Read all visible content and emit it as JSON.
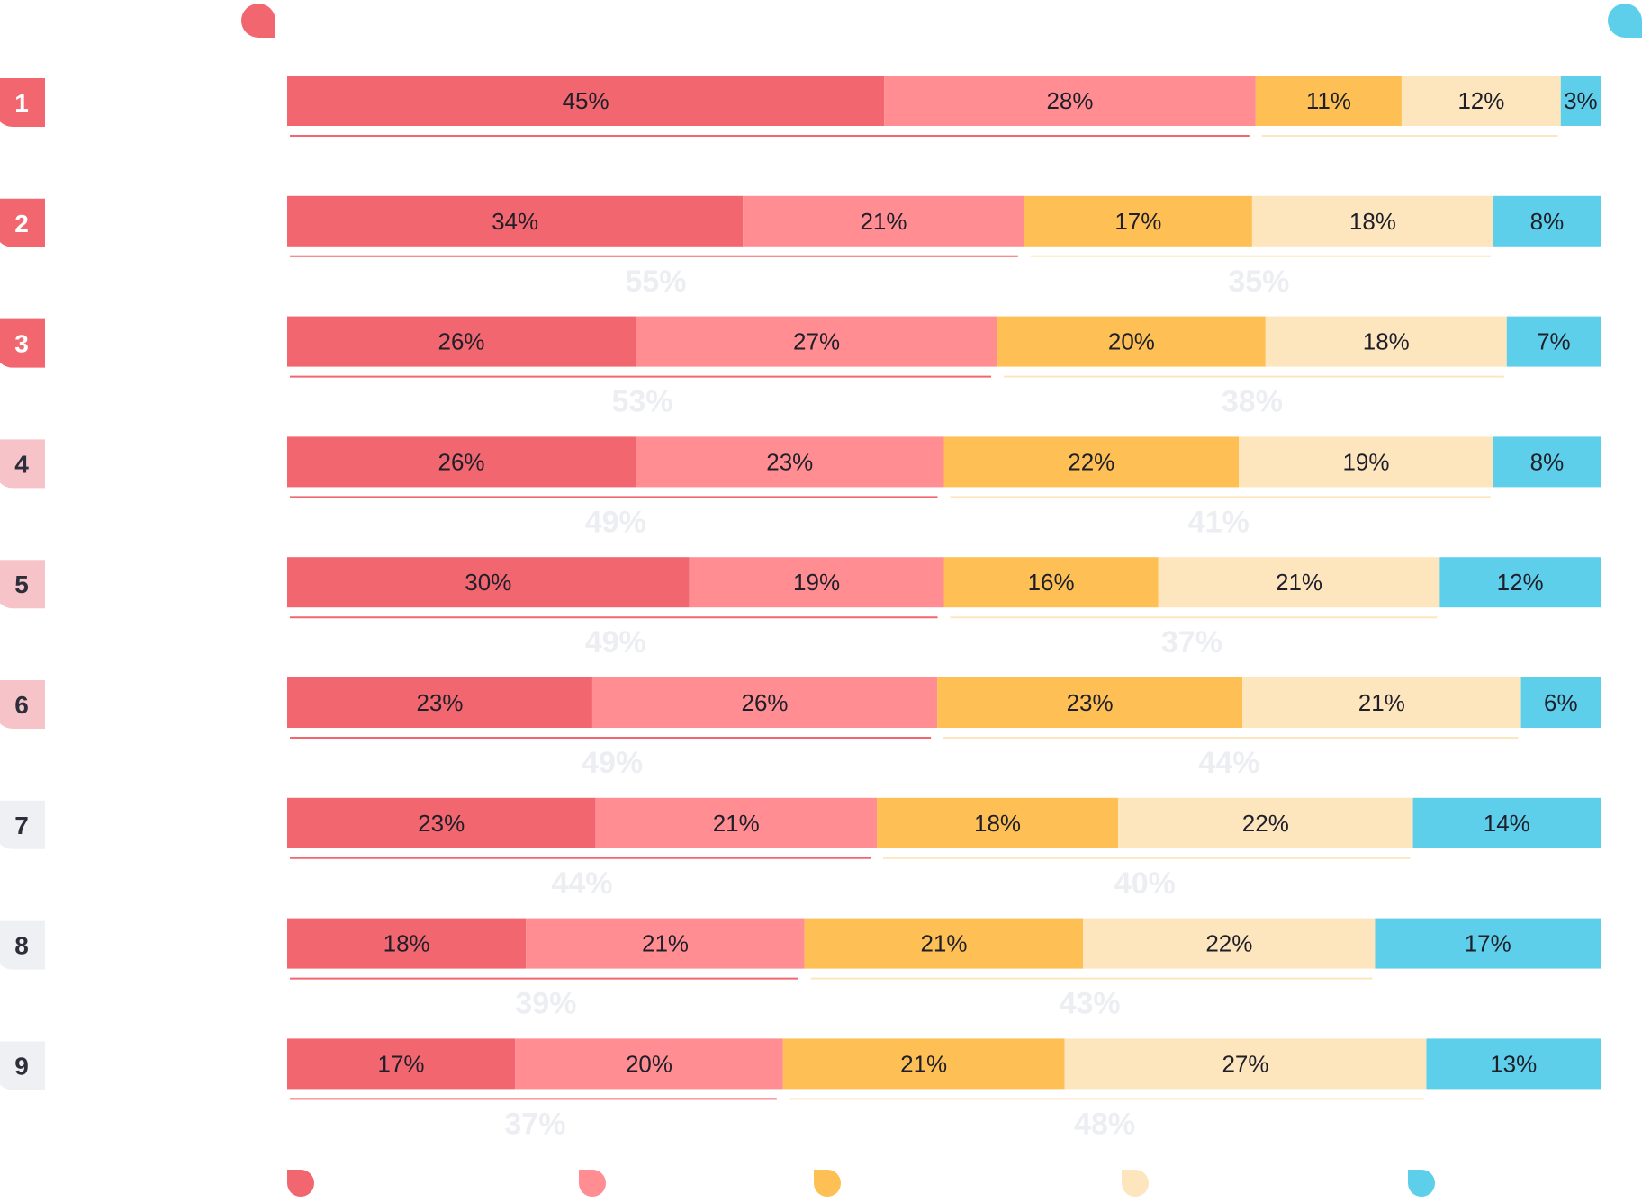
{
  "colors": {
    "seg": [
      "#f2666f",
      "#ff8d92",
      "#fec055",
      "#fde5bd",
      "#5ecfeb"
    ],
    "rank_strong": "#f2666f",
    "rank_medium": "#f6c3c8",
    "rank_light": "#eff0f3",
    "rank_text_light": "#2c2f3a",
    "group_text": "#eceef2"
  },
  "chart_data": {
    "type": "bar",
    "orientation": "horizontal",
    "stacked": true,
    "normalized": true,
    "categories": [
      "1",
      "2",
      "3",
      "4",
      "5",
      "6",
      "7",
      "8",
      "9"
    ],
    "series": [
      {
        "values": [
          45,
          34,
          26,
          26,
          30,
          23,
          23,
          18,
          17
        ]
      },
      {
        "values": [
          28,
          21,
          27,
          23,
          19,
          26,
          21,
          21,
          20
        ]
      },
      {
        "values": [
          11,
          17,
          20,
          22,
          16,
          23,
          18,
          21,
          21
        ]
      },
      {
        "values": [
          12,
          18,
          18,
          19,
          21,
          21,
          22,
          22,
          27
        ]
      },
      {
        "values": [
          3,
          8,
          7,
          8,
          12,
          6,
          14,
          17,
          13
        ]
      }
    ],
    "labels": [
      [
        "45%",
        "28%",
        "11%",
        "12%",
        "3%"
      ],
      [
        "34%",
        "21%",
        "17%",
        "18%",
        "8%"
      ],
      [
        "26%",
        "27%",
        "20%",
        "18%",
        "7%"
      ],
      [
        "26%",
        "23%",
        "22%",
        "19%",
        "8%"
      ],
      [
        "30%",
        "19%",
        "16%",
        "21%",
        "12%"
      ],
      [
        "23%",
        "26%",
        "23%",
        "21%",
        "6%"
      ],
      [
        "23%",
        "21%",
        "18%",
        "22%",
        "14%"
      ],
      [
        "18%",
        "21%",
        "21%",
        "22%",
        "17%"
      ],
      [
        "17%",
        "20%",
        "21%",
        "27%",
        "13%"
      ]
    ],
    "group_totals_left": [
      "",
      "55%",
      "53%",
      "49%",
      "49%",
      "49%",
      "44%",
      "39%",
      "37%"
    ],
    "group_totals_right": [
      "",
      "35%",
      "38%",
      "41%",
      "37%",
      "44%",
      "40%",
      "43%",
      "48%"
    ],
    "rank_style": [
      "strong",
      "strong",
      "strong",
      "medium",
      "medium",
      "medium",
      "light",
      "light",
      "light"
    ],
    "xlim": [
      0,
      100
    ],
    "legend_position": "bottom",
    "grid": false
  }
}
